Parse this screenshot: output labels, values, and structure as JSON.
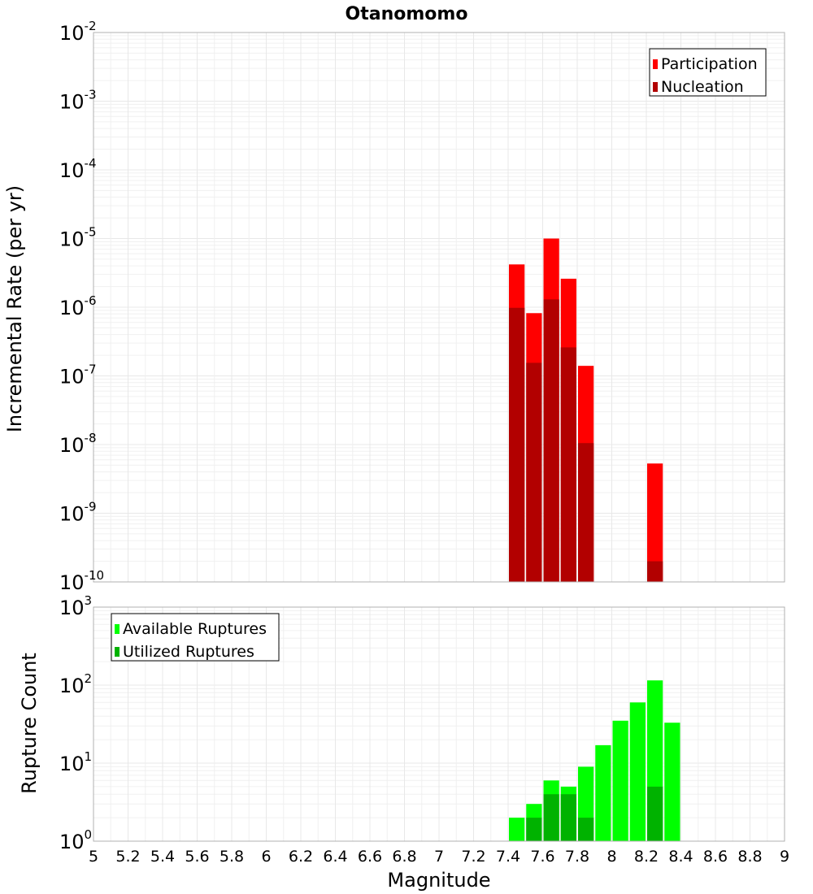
{
  "chart_data": [
    {
      "type": "bar",
      "title": "Otanomomo",
      "ylabel": "Incremental Rate (per yr)",
      "xlabel": "",
      "yscale": "log",
      "ylim_exp": [
        -10,
        -2
      ],
      "xlim": [
        5,
        9
      ],
      "bin_width": 0.1,
      "y_tick_labels": [
        {
          "base": "10",
          "exp": "-2"
        },
        {
          "base": "10",
          "exp": "-3"
        },
        {
          "base": "10",
          "exp": "-4"
        },
        {
          "base": "10",
          "exp": "-5"
        },
        {
          "base": "10",
          "exp": "-6"
        },
        {
          "base": "10",
          "exp": "-7"
        },
        {
          "base": "10",
          "exp": "-8"
        },
        {
          "base": "10",
          "exp": "-9"
        },
        {
          "base": "10",
          "exp": "-10"
        }
      ],
      "legend_position": "top-right",
      "series": [
        {
          "name": "Participation",
          "color": "#ff0000",
          "x": [
            7.45,
            7.55,
            7.65,
            7.75,
            7.85,
            8.25
          ],
          "values": [
            4.2e-06,
            8.2e-07,
            1e-05,
            2.6e-06,
            1.4e-07,
            5.3e-09
          ]
        },
        {
          "name": "Nucleation",
          "color": "#b20000",
          "x": [
            7.45,
            7.55,
            7.65,
            7.75,
            7.85,
            8.25
          ],
          "values": [
            9.8e-07,
            1.55e-07,
            1.3e-06,
            2.6e-07,
            1.05e-08,
            2e-10
          ]
        }
      ]
    },
    {
      "type": "bar",
      "title": "",
      "ylabel": "Rupture Count",
      "xlabel": "Magnitude",
      "yscale": "log",
      "ylim_exp": [
        0,
        3
      ],
      "xlim": [
        5,
        9
      ],
      "bin_width": 0.1,
      "y_tick_labels": [
        {
          "base": "10",
          "exp": "3"
        },
        {
          "base": "10",
          "exp": "2"
        },
        {
          "base": "10",
          "exp": "1"
        },
        {
          "base": "10",
          "exp": "0"
        }
      ],
      "x_tick_labels": [
        "5",
        "5.2",
        "5.4",
        "5.6",
        "5.8",
        "6",
        "6.2",
        "6.4",
        "6.6",
        "6.8",
        "7",
        "7.2",
        "7.4",
        "7.6",
        "7.8",
        "8",
        "8.2",
        "8.4",
        "8.6",
        "8.8",
        "9"
      ],
      "legend_position": "top-left",
      "series": [
        {
          "name": "Available Ruptures",
          "color": "#00ff00",
          "x": [
            6.75,
            7.35,
            7.45,
            7.55,
            7.65,
            7.75,
            7.85,
            7.95,
            8.05,
            8.15,
            8.25,
            8.35
          ],
          "values": [
            1,
            1,
            2,
            3,
            6,
            5,
            9,
            17,
            35,
            60,
            115,
            33
          ]
        },
        {
          "name": "Utilized Ruptures",
          "color": "#00b200",
          "x": [
            7.35,
            7.45,
            7.55,
            7.65,
            7.75,
            7.85,
            7.95,
            8.05,
            8.25
          ],
          "values": [
            1,
            1,
            2,
            4,
            4,
            2,
            1,
            1,
            5
          ]
        }
      ]
    }
  ]
}
